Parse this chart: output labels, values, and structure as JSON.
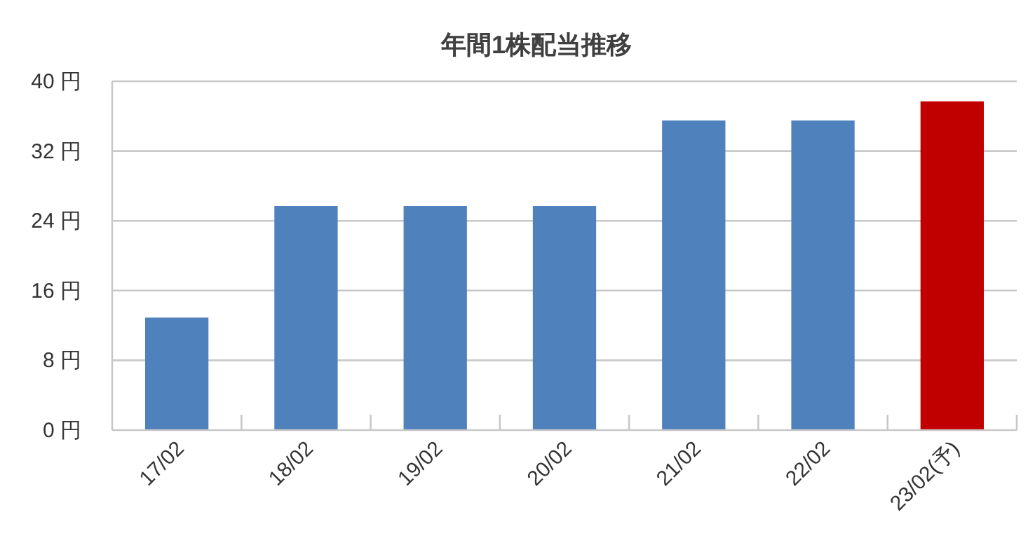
{
  "chart_data": {
    "type": "bar",
    "title": "年間1株配当推移",
    "categories": [
      "17/02",
      "18/02",
      "19/02",
      "20/02",
      "21/02",
      "22/02",
      "23/02(予)"
    ],
    "values": [
      12.9,
      25.7,
      25.7,
      25.7,
      35.5,
      35.5,
      37.7
    ],
    "colors": [
      "#4f81bd",
      "#4f81bd",
      "#4f81bd",
      "#4f81bd",
      "#4f81bd",
      "#4f81bd",
      "#c00000"
    ],
    "ylim": [
      0,
      40
    ],
    "yticks": [
      {
        "value": 0,
        "label": "0 円"
      },
      {
        "value": 8,
        "label": "8 円"
      },
      {
        "value": 16,
        "label": "16 円"
      },
      {
        "value": 24,
        "label": "24 円"
      },
      {
        "value": 32,
        "label": "32 円"
      },
      {
        "value": 40,
        "label": "40 円"
      }
    ],
    "grid": "y"
  }
}
